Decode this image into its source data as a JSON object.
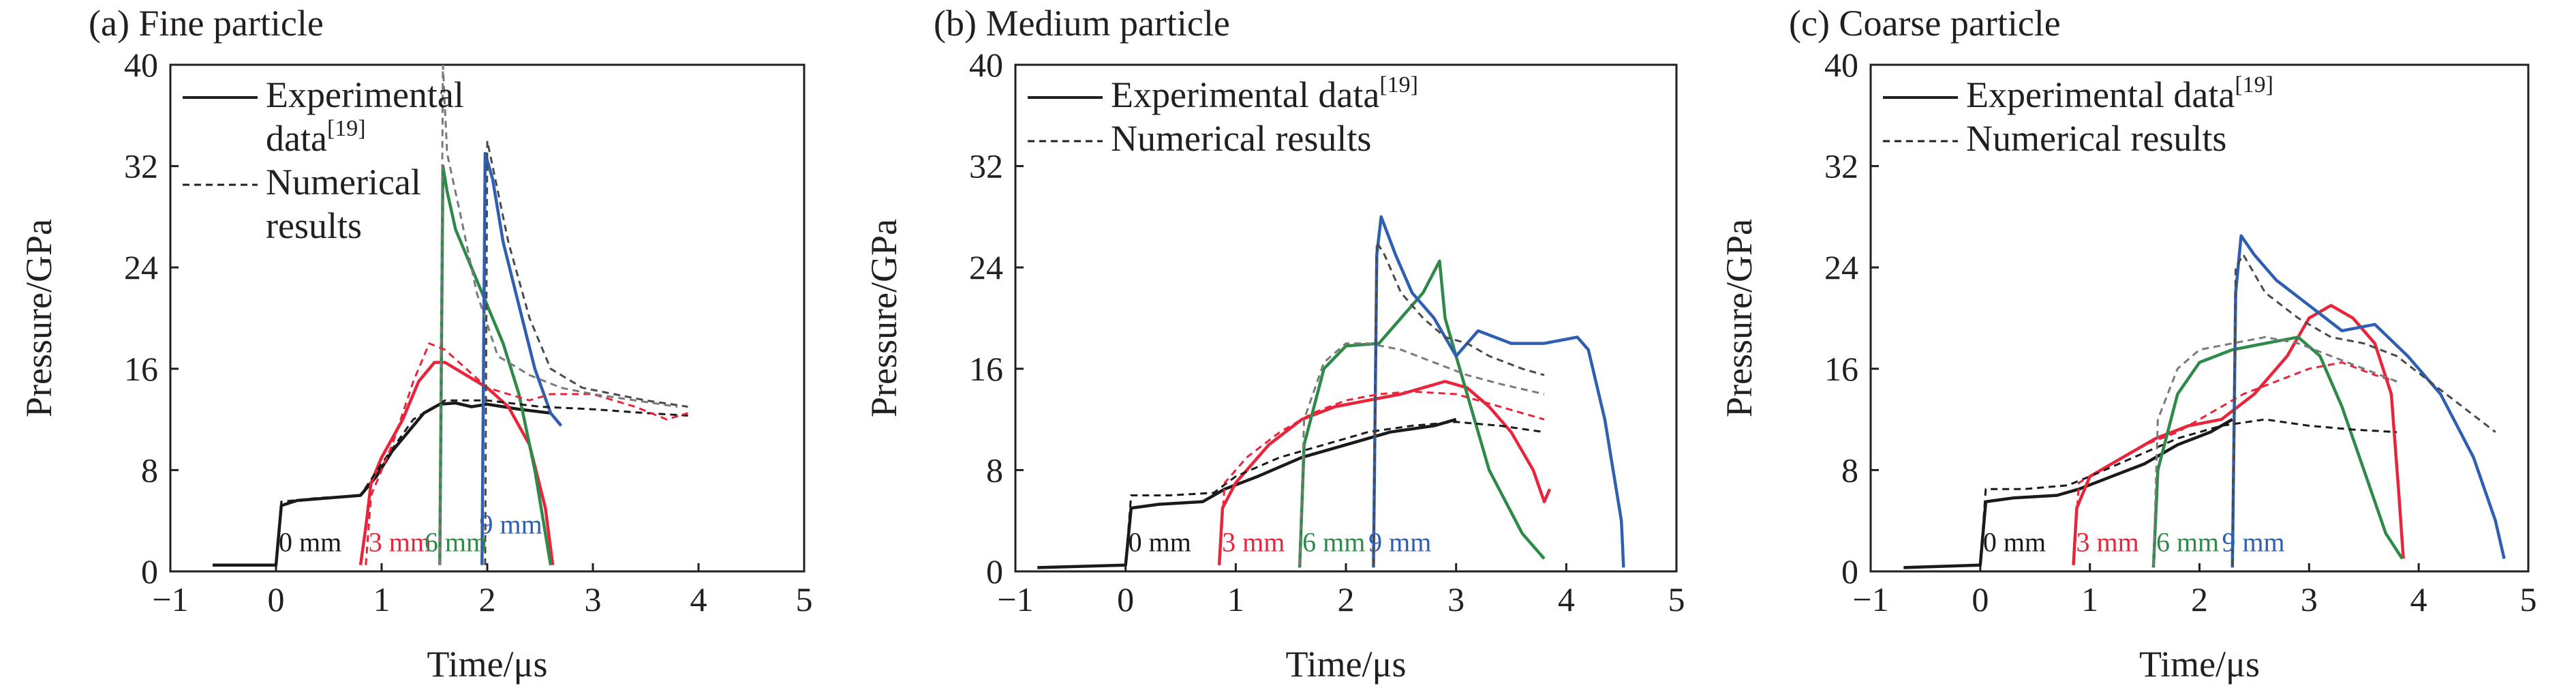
{
  "figure": {
    "background": "#ffffff",
    "text_color": "#231f20"
  },
  "series_styles": {
    "Experimental data": {
      "dash": "solid"
    },
    "Numerical results": {
      "dash": "dashed"
    }
  },
  "position_colors": {
    "0 mm": "#1a1a1a",
    "3 mm": "#e8253a",
    "6 mm": "#2e8a48",
    "9 mm": "#2f5fb0"
  },
  "chart_data": [
    {
      "type": "line",
      "title": "(a) Fine particle",
      "xlabel": "Time/μs",
      "ylabel": "Pressure/GPa",
      "xlim": [
        -1,
        5
      ],
      "ylim": [
        0,
        40
      ],
      "xticks": [
        -1,
        0,
        1,
        2,
        3,
        4,
        5
      ],
      "yticks": [
        0,
        8,
        16,
        24,
        32,
        40
      ],
      "grid": false,
      "legend_position": "top-left",
      "legend": [
        {
          "text": "Experimental",
          "super": "",
          "style": "solid"
        },
        {
          "text": "data",
          "super": "[19]",
          "style": ""
        },
        {
          "text": "Numerical",
          "super": "",
          "style": "dashed"
        },
        {
          "text": "results",
          "super": "",
          "style": ""
        }
      ],
      "position_labels": [
        {
          "text": "0 mm",
          "color": "#1a1a1a",
          "x": 0.0,
          "y": 1.6
        },
        {
          "text": "3 mm",
          "color": "#e8253a",
          "x": 0.85,
          "y": 1.6
        },
        {
          "text": "6 mm",
          "color": "#2e8a48",
          "x": 1.38,
          "y": 1.6
        },
        {
          "text": "9 mm",
          "color": "#2f5fb0",
          "x": 1.9,
          "y": 3.0
        }
      ],
      "series": [
        {
          "name": "0 mm",
          "type": "Experimental data",
          "color": "#1a1a1a",
          "x": [
            -0.6,
            0.0,
            0.05,
            0.2,
            0.5,
            0.8,
            0.95,
            1.1,
            1.25,
            1.4,
            1.55,
            1.7,
            1.85,
            2.0,
            2.3,
            2.6
          ],
          "y": [
            0.5,
            0.5,
            5.2,
            5.6,
            5.8,
            6.0,
            7.5,
            9.5,
            11.0,
            12.5,
            13.2,
            13.3,
            13.0,
            13.2,
            12.8,
            12.5
          ]
        },
        {
          "name": "3 mm",
          "type": "Experimental data",
          "color": "#e8253a",
          "x": [
            0.8,
            0.85,
            0.9,
            1.0,
            1.2,
            1.35,
            1.5,
            1.6,
            1.8,
            2.0,
            2.2,
            2.4,
            2.55,
            2.62
          ],
          "y": [
            0.5,
            3.5,
            7.0,
            9.0,
            12.0,
            15.0,
            16.5,
            16.5,
            15.5,
            14.5,
            13.0,
            10.0,
            5.0,
            0.5
          ]
        },
        {
          "name": "6 mm",
          "type": "Experimental data",
          "color": "#2e8a48",
          "x": [
            1.55,
            1.58,
            1.62,
            1.7,
            1.85,
            2.0,
            2.15,
            2.3,
            2.45,
            2.6
          ],
          "y": [
            0.5,
            32.0,
            30.0,
            27.0,
            24.0,
            21.0,
            18.0,
            14.0,
            8.0,
            0.5
          ]
        },
        {
          "name": "9 mm",
          "type": "Experimental data",
          "color": "#2f5fb0",
          "x": [
            1.95,
            1.98,
            2.05,
            2.15,
            2.3,
            2.45,
            2.6,
            2.7
          ],
          "y": [
            0.5,
            33.0,
            31.0,
            26.0,
            21.0,
            16.0,
            12.5,
            11.5
          ]
        },
        {
          "name": "0 mm",
          "type": "Numerical results",
          "color": "#1a1a1a",
          "x": [
            0.0,
            0.05,
            0.4,
            0.8,
            1.0,
            1.3,
            1.6,
            2.0,
            2.5,
            3.0,
            3.5,
            3.9
          ],
          "y": [
            0.5,
            5.5,
            5.8,
            6.0,
            8.5,
            12.0,
            13.5,
            13.5,
            13.0,
            12.8,
            12.5,
            12.3
          ]
        },
        {
          "name": "3 mm",
          "type": "Numerical results",
          "color": "#e8253a",
          "x": [
            0.85,
            0.9,
            1.1,
            1.3,
            1.45,
            1.6,
            1.8,
            2.0,
            2.2,
            2.4,
            2.6,
            3.0,
            3.4,
            3.7,
            3.9
          ],
          "y": [
            0.5,
            6.0,
            10.0,
            15.0,
            18.0,
            17.5,
            16.0,
            14.5,
            14.0,
            13.5,
            14.0,
            14.0,
            13.0,
            12.0,
            12.5
          ]
        },
        {
          "name": "6 mm",
          "type": "Numerical results",
          "color": "#7a7a7a",
          "x": [
            1.55,
            1.58,
            1.62,
            1.75,
            1.9,
            2.1,
            2.4,
            2.7,
            3.0,
            3.4,
            3.8
          ],
          "y": [
            0.5,
            40.0,
            33.0,
            28.0,
            22.0,
            17.0,
            15.5,
            14.5,
            14.0,
            13.5,
            13.0
          ]
        },
        {
          "name": "9 mm",
          "type": "Numerical results",
          "color": "#4a4a4a",
          "x": [
            1.98,
            2.0,
            2.05,
            2.2,
            2.4,
            2.6,
            2.9,
            3.2,
            3.5,
            3.9
          ],
          "y": [
            0.5,
            34.0,
            32.0,
            26.0,
            20.0,
            16.0,
            14.5,
            14.0,
            13.5,
            13.0
          ]
        }
      ]
    },
    {
      "type": "line",
      "title": "(b) Medium particle",
      "xlabel": "Time/μs",
      "ylabel": "Pressure/GPa",
      "xlim": [
        -1,
        5
      ],
      "ylim": [
        0,
        40
      ],
      "xticks": [
        -1,
        0,
        1,
        2,
        3,
        4,
        5
      ],
      "yticks": [
        0,
        8,
        16,
        24,
        32,
        40
      ],
      "grid": false,
      "legend_position": "top-left",
      "legend": [
        {
          "text": "Experimental data",
          "super": "[19]",
          "style": "solid"
        },
        {
          "text": "Numerical results",
          "super": "",
          "style": "dashed"
        }
      ],
      "position_labels": [
        {
          "text": "0 mm",
          "color": "#1a1a1a",
          "x": 0.0,
          "y": 1.6
        },
        {
          "text": "3 mm",
          "color": "#e8253a",
          "x": 0.85,
          "y": 1.6
        },
        {
          "text": "6 mm",
          "color": "#2e8a48",
          "x": 1.58,
          "y": 1.6
        },
        {
          "text": "9 mm",
          "color": "#2f5fb0",
          "x": 2.18,
          "y": 1.6
        }
      ],
      "series": [
        {
          "name": "0 mm",
          "type": "Experimental data",
          "color": "#1a1a1a",
          "x": [
            -0.8,
            0.0,
            0.05,
            0.3,
            0.7,
            0.9,
            1.2,
            1.6,
            2.0,
            2.4,
            2.8,
            3.0
          ],
          "y": [
            0.3,
            0.5,
            5.0,
            5.3,
            5.5,
            6.5,
            7.5,
            9.0,
            10.0,
            11.0,
            11.5,
            12.0
          ]
        },
        {
          "name": "3 mm",
          "type": "Experimental data",
          "color": "#e8253a",
          "x": [
            0.85,
            0.88,
            1.0,
            1.3,
            1.6,
            1.9,
            2.2,
            2.5,
            2.7,
            2.9,
            3.1,
            3.3,
            3.5,
            3.7,
            3.8,
            3.85
          ],
          "y": [
            0.5,
            5.0,
            7.0,
            10.0,
            12.0,
            13.0,
            13.5,
            14.0,
            14.5,
            15.0,
            14.5,
            13.0,
            11.0,
            8.0,
            5.5,
            6.5
          ]
        },
        {
          "name": "6 mm",
          "type": "Experimental data",
          "color": "#2e8a48",
          "x": [
            1.58,
            1.62,
            1.8,
            2.0,
            2.3,
            2.5,
            2.7,
            2.85,
            2.9,
            3.1,
            3.3,
            3.6,
            3.8
          ],
          "y": [
            0.3,
            10.0,
            16.0,
            17.8,
            18.0,
            20.0,
            22.0,
            24.5,
            20.0,
            14.0,
            8.0,
            3.0,
            1.0
          ]
        },
        {
          "name": "9 mm",
          "type": "Experimental data",
          "color": "#2f5fb0",
          "x": [
            2.25,
            2.28,
            2.32,
            2.45,
            2.6,
            2.8,
            3.0,
            3.2,
            3.5,
            3.8,
            4.1,
            4.2,
            4.35,
            4.5,
            4.52
          ],
          "y": [
            0.3,
            25.0,
            28.0,
            25.0,
            22.0,
            20.0,
            17.0,
            19.0,
            18.0,
            18.0,
            18.5,
            17.5,
            12.0,
            4.0,
            0.3
          ]
        },
        {
          "name": "0 mm",
          "type": "Numerical results",
          "color": "#1a1a1a",
          "x": [
            0.0,
            0.05,
            0.4,
            0.8,
            1.0,
            1.4,
            1.8,
            2.2,
            2.6,
            3.0,
            3.4,
            3.8
          ],
          "y": [
            0.5,
            6.0,
            6.0,
            6.2,
            7.5,
            9.0,
            10.0,
            11.0,
            11.5,
            11.8,
            11.5,
            11.0
          ]
        },
        {
          "name": "3 mm",
          "type": "Numerical results",
          "color": "#e8253a",
          "x": [
            0.85,
            0.9,
            1.1,
            1.4,
            1.7,
            2.0,
            2.3,
            2.6,
            3.0,
            3.4,
            3.8
          ],
          "y": [
            0.5,
            7.0,
            9.0,
            11.0,
            12.5,
            13.5,
            14.0,
            14.2,
            14.0,
            13.0,
            12.0
          ]
        },
        {
          "name": "6 mm",
          "type": "Numerical results",
          "color": "#7a7a7a",
          "x": [
            1.58,
            1.62,
            1.8,
            2.0,
            2.2,
            2.5,
            2.8,
            3.1,
            3.4,
            3.8
          ],
          "y": [
            0.5,
            12.0,
            16.5,
            18.0,
            18.0,
            17.5,
            16.5,
            15.5,
            14.8,
            14.0
          ]
        },
        {
          "name": "9 mm",
          "type": "Numerical results",
          "color": "#4a4a4a",
          "x": [
            2.25,
            2.28,
            2.35,
            2.5,
            2.7,
            2.9,
            3.1,
            3.3,
            3.6,
            3.8
          ],
          "y": [
            0.5,
            26.0,
            25.0,
            22.0,
            20.0,
            18.5,
            18.0,
            17.0,
            16.0,
            15.5
          ]
        }
      ]
    },
    {
      "type": "line",
      "title": "(c) Coarse particle",
      "xlabel": "Time/μs",
      "ylabel": "Pressure/GPa",
      "xlim": [
        -1,
        5
      ],
      "ylim": [
        0,
        40
      ],
      "xticks": [
        -1,
        0,
        1,
        2,
        3,
        4,
        5
      ],
      "yticks": [
        0,
        8,
        16,
        24,
        32,
        40
      ],
      "grid": false,
      "legend_position": "top-left",
      "legend": [
        {
          "text": "Experimental data",
          "super": "[19]",
          "style": "solid"
        },
        {
          "text": "Numerical results",
          "super": "",
          "style": "dashed"
        }
      ],
      "position_labels": [
        {
          "text": "0 mm",
          "color": "#1a1a1a",
          "x": 0.0,
          "y": 1.6
        },
        {
          "text": "3 mm",
          "color": "#e8253a",
          "x": 0.85,
          "y": 1.6
        },
        {
          "text": "6 mm",
          "color": "#2e8a48",
          "x": 1.58,
          "y": 1.6
        },
        {
          "text": "9 mm",
          "color": "#2f5fb0",
          "x": 2.18,
          "y": 1.6
        }
      ],
      "series": [
        {
          "name": "0 mm",
          "type": "Experimental data",
          "color": "#1a1a1a",
          "x": [
            -0.7,
            0.0,
            0.05,
            0.3,
            0.7,
            0.9,
            1.2,
            1.5,
            1.8,
            2.1,
            2.3
          ],
          "y": [
            0.3,
            0.5,
            5.5,
            5.8,
            6.0,
            6.5,
            7.5,
            8.5,
            10.0,
            11.0,
            12.0
          ]
        },
        {
          "name": "3 mm",
          "type": "Experimental data",
          "color": "#e8253a",
          "x": [
            0.85,
            0.88,
            1.0,
            1.3,
            1.6,
            1.9,
            2.2,
            2.5,
            2.8,
            3.0,
            3.2,
            3.4,
            3.6,
            3.75,
            3.82,
            3.86
          ],
          "y": [
            0.5,
            5.0,
            7.5,
            9.0,
            10.5,
            11.5,
            12.0,
            14.0,
            17.0,
            20.0,
            21.0,
            20.0,
            18.0,
            14.0,
            6.0,
            1.0
          ]
        },
        {
          "name": "6 mm",
          "type": "Experimental data",
          "color": "#2e8a48",
          "x": [
            1.58,
            1.62,
            1.8,
            2.0,
            2.3,
            2.6,
            2.9,
            3.1,
            3.3,
            3.5,
            3.7,
            3.85
          ],
          "y": [
            0.3,
            8.0,
            14.0,
            16.5,
            17.5,
            18.0,
            18.5,
            17.0,
            13.0,
            8.0,
            3.0,
            1.0
          ]
        },
        {
          "name": "9 mm",
          "type": "Experimental data",
          "color": "#2f5fb0",
          "x": [
            2.3,
            2.33,
            2.38,
            2.5,
            2.7,
            3.0,
            3.3,
            3.6,
            3.9,
            4.2,
            4.5,
            4.7,
            4.78
          ],
          "y": [
            0.3,
            22.0,
            26.5,
            25.0,
            23.0,
            21.0,
            19.0,
            19.5,
            17.0,
            14.0,
            9.0,
            4.0,
            1.0
          ]
        },
        {
          "name": "0 mm",
          "type": "Numerical results",
          "color": "#1a1a1a",
          "x": [
            0.0,
            0.05,
            0.4,
            0.8,
            1.0,
            1.4,
            1.8,
            2.2,
            2.6,
            3.0,
            3.4,
            3.8
          ],
          "y": [
            0.5,
            6.5,
            6.5,
            6.8,
            7.5,
            9.0,
            10.5,
            11.5,
            12.0,
            11.5,
            11.2,
            11.0
          ]
        },
        {
          "name": "3 mm",
          "type": "Numerical results",
          "color": "#e8253a",
          "x": [
            0.85,
            0.9,
            1.2,
            1.5,
            1.8,
            2.1,
            2.4,
            2.7,
            3.0,
            3.3,
            3.6,
            3.8
          ],
          "y": [
            0.5,
            7.0,
            8.5,
            10.0,
            11.0,
            12.5,
            14.0,
            15.0,
            16.0,
            16.5,
            15.5,
            15.0
          ]
        },
        {
          "name": "6 mm",
          "type": "Numerical results",
          "color": "#7a7a7a",
          "x": [
            1.58,
            1.62,
            1.8,
            2.0,
            2.3,
            2.6,
            2.9,
            3.2,
            3.5,
            3.8
          ],
          "y": [
            0.5,
            12.0,
            16.0,
            17.5,
            18.0,
            18.5,
            18.0,
            17.0,
            16.0,
            15.0
          ]
        },
        {
          "name": "9 mm",
          "type": "Numerical results",
          "color": "#4a4a4a",
          "x": [
            2.3,
            2.33,
            2.4,
            2.6,
            2.9,
            3.2,
            3.5,
            3.8,
            4.1,
            4.4,
            4.7
          ],
          "y": [
            0.5,
            24.0,
            25.0,
            22.0,
            20.0,
            18.5,
            18.0,
            17.0,
            15.0,
            13.0,
            11.0
          ]
        }
      ]
    }
  ]
}
